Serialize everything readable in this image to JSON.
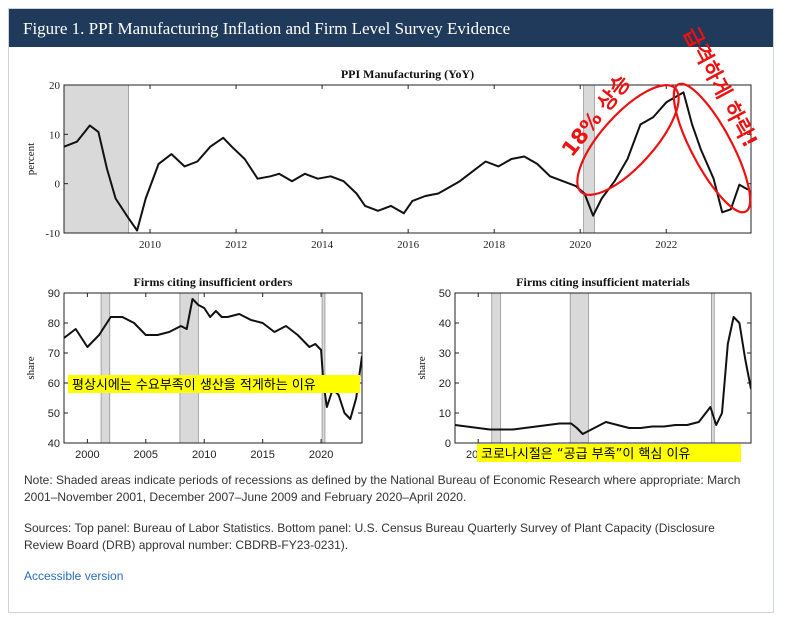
{
  "header": {
    "title": "Figure 1. PPI Manufacturing Inflation and Firm Level Survey Evidence"
  },
  "notes": {
    "note": "Note: Shaded areas indicate periods of recessions as defined by the National Bureau of Economic Research where appropriate: March 2001–November 2001, December 2007–June 2009 and February 2020–April 2020.",
    "sources": "Sources: Top panel: Bureau of Labor Statistics. Bottom panel: U.S. Census Bureau Quarterly Survey of Plant Capacity (Disclosure Review Board (DRB) approval number: CBDRB-FY23-0231)."
  },
  "link": {
    "label": "Accessible version"
  },
  "annotations": {
    "rise": "18% 상승",
    "fall": "급격하게 하락!",
    "orders_note": "평상시에는 수요부족이 생산을 적게하는 이유",
    "materials_note": "코로나시절은 “공급 부족”이 핵심 이유"
  },
  "colors": {
    "header_bg": "#1f3a5a",
    "annotation_red": "#ee1111",
    "highlight": "#ffff00",
    "recession_shade": "#d9d9d9",
    "line": "#111111"
  },
  "recessions": [
    [
      2001.17,
      2001.92
    ],
    [
      2007.92,
      2009.5
    ],
    [
      2020.08,
      2020.33
    ]
  ],
  "chart_data": [
    {
      "type": "line",
      "title": "PPI Manufacturing (YoY)",
      "ylabel": "percent",
      "xlim": [
        2008.0,
        2023.97
      ],
      "ylim": [
        -10,
        20
      ],
      "xticks": [
        2010,
        2012,
        2014,
        2016,
        2018,
        2020,
        2022
      ],
      "yticks": [
        -10,
        0,
        10,
        20
      ],
      "x": [
        2008.0,
        2008.3,
        2008.6,
        2008.8,
        2009.0,
        2009.2,
        2009.5,
        2009.7,
        2009.9,
        2010.2,
        2010.5,
        2010.8,
        2011.1,
        2011.4,
        2011.7,
        2011.9,
        2012.2,
        2012.5,
        2012.8,
        2013.0,
        2013.3,
        2013.6,
        2013.9,
        2014.2,
        2014.5,
        2014.8,
        2015.0,
        2015.3,
        2015.6,
        2015.9,
        2016.1,
        2016.4,
        2016.7,
        2016.9,
        2017.2,
        2017.5,
        2017.8,
        2018.1,
        2018.4,
        2018.7,
        2019.0,
        2019.3,
        2019.6,
        2019.9,
        2020.1,
        2020.3,
        2020.5,
        2020.8,
        2021.1,
        2021.4,
        2021.7,
        2022.0,
        2022.4,
        2022.6,
        2022.8,
        2023.1,
        2023.3,
        2023.5,
        2023.7,
        2023.9
      ],
      "y": [
        7.5,
        8.5,
        11.8,
        10.5,
        3,
        -3,
        -7,
        -9.5,
        -3,
        4,
        6,
        3.5,
        4.5,
        7.5,
        9.3,
        7.5,
        5,
        1,
        1.5,
        2,
        0.5,
        2,
        1,
        1.5,
        0.5,
        -2,
        -4.5,
        -5.5,
        -4.5,
        -6,
        -3.5,
        -2.5,
        -2,
        -1,
        0.5,
        2.5,
        4.5,
        3.5,
        5,
        5.5,
        4,
        1.5,
        0.5,
        -0.5,
        -2,
        -6.5,
        -3,
        0.5,
        5,
        12,
        13.5,
        16.5,
        18.5,
        12,
        7,
        1,
        -5.8,
        -5.2,
        -0.2,
        -1.2
      ]
    },
    {
      "type": "line",
      "title": "Firms citing insufficient orders",
      "ylabel": "share",
      "xlim": [
        1998.0,
        2023.5
      ],
      "ylim": [
        40,
        90
      ],
      "xticks": [
        2000,
        2005,
        2010,
        2015,
        2020
      ],
      "yticks": [
        40,
        50,
        60,
        70,
        80,
        90
      ],
      "x": [
        1998.0,
        1999.0,
        2000.0,
        2001.0,
        2002.0,
        2003.0,
        2004.0,
        2005.0,
        2006.0,
        2007.0,
        2008.0,
        2008.5,
        2009.0,
        2009.5,
        2010.0,
        2010.5,
        2011.0,
        2011.5,
        2012.0,
        2013.0,
        2014.0,
        2015.0,
        2016.0,
        2017.0,
        2018.0,
        2019.0,
        2019.5,
        2020.0,
        2020.2,
        2020.5,
        2021.0,
        2021.5,
        2022.0,
        2022.5,
        2023.0,
        2023.5
      ],
      "y": [
        75,
        78,
        72,
        76,
        82,
        82,
        80,
        76,
        76,
        77,
        79,
        78,
        88,
        86,
        85,
        82,
        84,
        82,
        82,
        83,
        81,
        80,
        77,
        79,
        76,
        72,
        73,
        71,
        60,
        52,
        58,
        56,
        50,
        48,
        55,
        69
      ]
    },
    {
      "type": "line",
      "title": "Firms citing insufficient materials",
      "ylabel": "share",
      "xlim": [
        1998.0,
        2023.5
      ],
      "ylim": [
        0,
        50
      ],
      "xticks": [
        2000
      ],
      "yticks": [
        0,
        10,
        20,
        30,
        40,
        50
      ],
      "x": [
        1998.0,
        1999.0,
        2000.0,
        2001.0,
        2002.0,
        2003.0,
        2004.0,
        2005.0,
        2006.0,
        2007.0,
        2008.0,
        2008.5,
        2009.0,
        2009.5,
        2010.0,
        2010.5,
        2011.0,
        2012.0,
        2013.0,
        2014.0,
        2015.0,
        2016.0,
        2017.0,
        2018.0,
        2019.0,
        2020.0,
        2020.5,
        2021.0,
        2021.5,
        2022.0,
        2022.5,
        2023.0,
        2023.5
      ],
      "y": [
        6,
        5.5,
        5,
        4.5,
        4.5,
        4.5,
        5,
        5.5,
        6,
        6.5,
        6.5,
        5,
        3,
        4,
        5,
        6,
        7,
        6,
        5,
        5,
        5.5,
        5.5,
        6,
        6,
        7,
        12,
        6,
        10,
        33,
        42,
        40,
        28,
        18
      ]
    }
  ]
}
